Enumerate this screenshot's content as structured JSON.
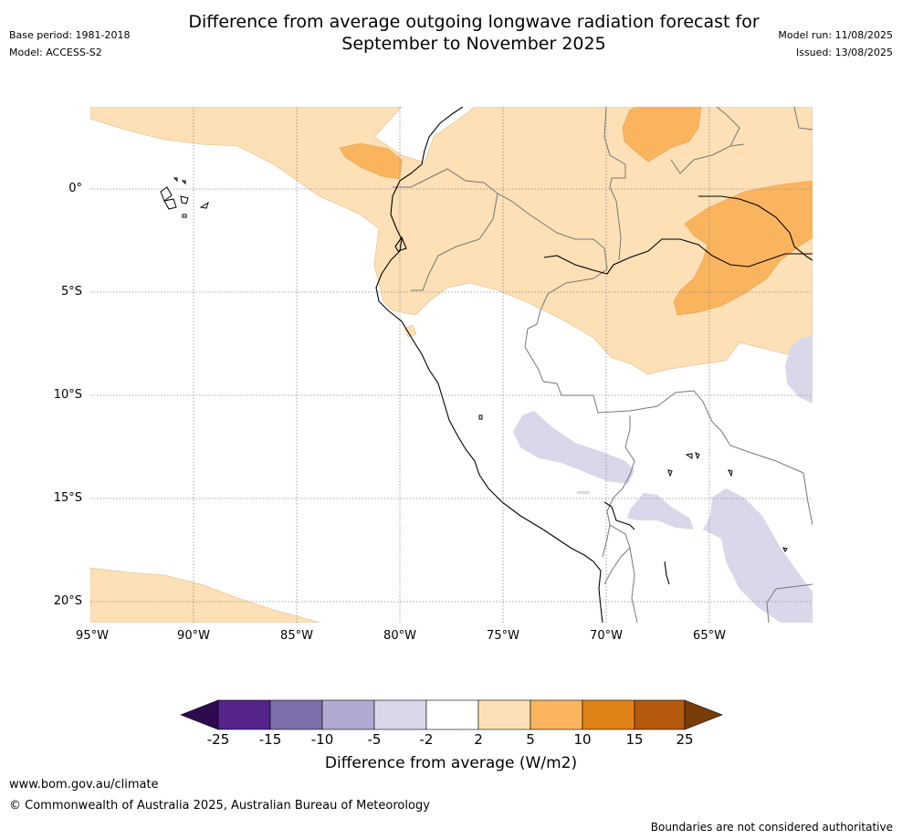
{
  "title_line1": "Difference from average outgoing longwave radiation forecast for",
  "title_line2": "September to November 2025",
  "base_period": "Base period: 1981-2018",
  "model": "Model: ACCESS-S2",
  "model_run": "Model run: 11/08/2025",
  "issued": "Issued: 13/08/2025",
  "lat_labels": [
    "0°",
    "5°S",
    "10°S",
    "15°S",
    "20°S"
  ],
  "lon_labels": [
    "95°W",
    "90°W",
    "85°W",
    "80°W",
    "75°W",
    "70°W",
    "65°W"
  ],
  "colorbar": {
    "ticks": [
      "-25",
      "-15",
      "-10",
      "-5",
      "-2",
      "2",
      "5",
      "10",
      "15",
      "25"
    ],
    "label": "Difference from average (W/m2)",
    "colors": [
      "#2e0a50",
      "#54248a",
      "#7e6fab",
      "#b1a9d2",
      "#d8d8ea",
      "#ffffff",
      "#fde0b5",
      "#fbb45e",
      "#e08316",
      "#b55a0c",
      "#7a3d08"
    ]
  },
  "footer_url": "www.bom.gov.au/climate",
  "footer_copyright": "© Commonwealth of Australia 2025, Australian Bureau of Meteorology",
  "footer_disclaimer": "Boundaries are not considered authoritative"
}
